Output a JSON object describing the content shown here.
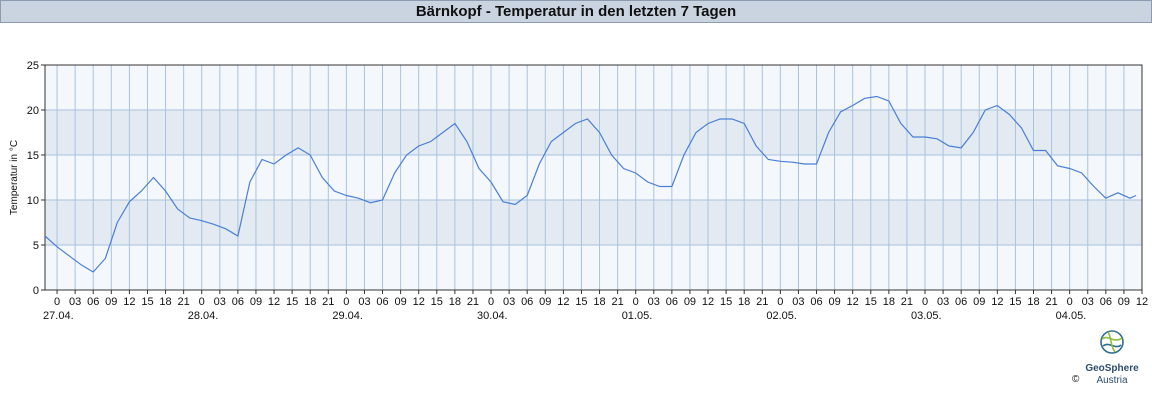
{
  "chart_data": {
    "type": "line",
    "title": "Bärnkopf - Temperatur in den letzten 7 Tagen",
    "y_label": "Temperatur in °C",
    "xlim": [
      -2,
      180
    ],
    "ylim": [
      0,
      25
    ],
    "yticks": [
      0,
      5,
      10,
      15,
      20,
      25
    ],
    "xticks": [
      0,
      {
        "value": 3,
        "label": "03"
      },
      {
        "value": 6,
        "label": "06"
      },
      {
        "value": 9,
        "label": "09"
      },
      12,
      15,
      18,
      21,
      {
        "value": 24,
        "label": "0"
      },
      {
        "value": 27,
        "label": "03"
      },
      {
        "value": 30,
        "label": "06"
      },
      {
        "value": 33,
        "label": "09"
      },
      {
        "value": 36,
        "label": "12"
      },
      {
        "value": 39,
        "label": "15"
      },
      {
        "value": 42,
        "label": "18"
      },
      {
        "value": 45,
        "label": "21"
      },
      {
        "value": 48,
        "label": "0"
      },
      {
        "value": 51,
        "label": "03"
      },
      {
        "value": 54,
        "label": "06"
      },
      {
        "value": 57,
        "label": "09"
      },
      {
        "value": 60,
        "label": "12"
      },
      {
        "value": 63,
        "label": "15"
      },
      {
        "value": 66,
        "label": "18"
      },
      {
        "value": 69,
        "label": "21"
      },
      {
        "value": 72,
        "label": "0"
      },
      {
        "value": 75,
        "label": "03"
      },
      {
        "value": 78,
        "label": "06"
      },
      {
        "value": 81,
        "label": "09"
      },
      {
        "value": 84,
        "label": "12"
      },
      {
        "value": 87,
        "label": "15"
      },
      {
        "value": 90,
        "label": "18"
      },
      {
        "value": 93,
        "label": "21"
      },
      {
        "value": 96,
        "label": "0"
      },
      {
        "value": 99,
        "label": "03"
      },
      {
        "value": 102,
        "label": "06"
      },
      {
        "value": 105,
        "label": "09"
      },
      {
        "value": 108,
        "label": "12"
      },
      {
        "value": 111,
        "label": "15"
      },
      {
        "value": 114,
        "label": "18"
      },
      {
        "value": 117,
        "label": "21"
      },
      {
        "value": 120,
        "label": "0"
      },
      {
        "value": 123,
        "label": "03"
      },
      {
        "value": 126,
        "label": "06"
      },
      {
        "value": 129,
        "label": "09"
      },
      {
        "value": 132,
        "label": "12"
      },
      {
        "value": 135,
        "label": "15"
      },
      {
        "value": 138,
        "label": "18"
      },
      {
        "value": 141,
        "label": "21"
      },
      {
        "value": 144,
        "label": "0"
      },
      {
        "value": 147,
        "label": "03"
      },
      {
        "value": 150,
        "label": "06"
      },
      {
        "value": 153,
        "label": "09"
      },
      {
        "value": 156,
        "label": "12"
      },
      {
        "value": 159,
        "label": "15"
      },
      {
        "value": 162,
        "label": "18"
      },
      {
        "value": 165,
        "label": "21"
      },
      {
        "value": 168,
        "label": "0"
      },
      {
        "value": 171,
        "label": "03"
      },
      {
        "value": 174,
        "label": "06"
      },
      {
        "value": 177,
        "label": "09"
      },
      {
        "value": 180,
        "label": "12"
      }
    ],
    "x_date_labels": [
      {
        "value": 0,
        "label": "27.04."
      },
      {
        "value": 24,
        "label": "28.04."
      },
      {
        "value": 48,
        "label": "29.04."
      },
      {
        "value": 72,
        "label": "30.04."
      },
      {
        "value": 96,
        "label": "01.05."
      },
      {
        "value": 120,
        "label": "02.05."
      },
      {
        "value": 144,
        "label": "03.05."
      },
      {
        "value": 168,
        "label": "04.05."
      }
    ],
    "grid": true,
    "x": [
      -2,
      0,
      2,
      4,
      6,
      8,
      10,
      12,
      14,
      16,
      18,
      20,
      22,
      24,
      26,
      28,
      30,
      32,
      34,
      36,
      38,
      40,
      42,
      44,
      46,
      48,
      50,
      52,
      54,
      56,
      58,
      60,
      62,
      64,
      66,
      68,
      70,
      72,
      74,
      76,
      78,
      80,
      82,
      84,
      86,
      88,
      90,
      92,
      94,
      96,
      98,
      100,
      102,
      104,
      106,
      108,
      110,
      112,
      114,
      116,
      118,
      120,
      122,
      124,
      126,
      128,
      130,
      132,
      134,
      136,
      138,
      140,
      142,
      144,
      146,
      148,
      150,
      152,
      154,
      156,
      158,
      160,
      162,
      164,
      166,
      168,
      170,
      172,
      174,
      176,
      178,
      179
    ],
    "series": [
      {
        "name": "Temperatur",
        "color": "#4a7fd6",
        "values": [
          6.0,
          4.8,
          3.8,
          2.8,
          2.0,
          3.5,
          7.5,
          9.8,
          11.0,
          12.5,
          11.0,
          9.0,
          8.0,
          7.7,
          7.3,
          6.8,
          6.0,
          12.0,
          14.5,
          14.0,
          15.0,
          15.8,
          15.0,
          12.5,
          11.0,
          10.5,
          10.2,
          9.7,
          10.0,
          13.0,
          15.0,
          16.0,
          16.5,
          17.5,
          18.5,
          16.5,
          13.5,
          12.0,
          9.8,
          9.5,
          10.5,
          14.0,
          16.5,
          17.5,
          18.5,
          19.0,
          17.5,
          15.0,
          13.5,
          13.0,
          12.0,
          11.5,
          11.5,
          15.0,
          17.5,
          18.5,
          19.0,
          19.0,
          18.5,
          16.0,
          14.5,
          14.3,
          14.2,
          14.0,
          14.0,
          17.5,
          19.8,
          20.5,
          21.3,
          21.5,
          21.0,
          18.5,
          17.0,
          17.0,
          16.8,
          16.0,
          15.8,
          17.5,
          20.0,
          20.5,
          19.5,
          18.0,
          15.5,
          15.5,
          13.8,
          13.5,
          13.0,
          11.5,
          10.2,
          10.8,
          10.2,
          10.5
        ]
      }
    ]
  },
  "logo": {
    "name": "GeoSphere",
    "sub": "Austria",
    "copyright": "©"
  }
}
